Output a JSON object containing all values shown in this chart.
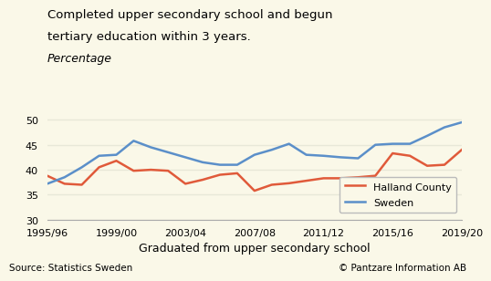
{
  "title_line1": "Completed upper secondary school and begun",
  "title_line2": "tertiary education within 3 years.",
  "title_line3": "Percentage",
  "xlabel": "Graduated from upper secondary school",
  "background_color": "#faf8e8",
  "source_left": "Source: Statistics Sweden",
  "source_right": "© Pantzare Information AB",
  "ylim": [
    30,
    52
  ],
  "yticks": [
    30,
    35,
    40,
    45,
    50
  ],
  "xtick_labels": [
    "1995/96",
    "1999/00",
    "2003/04",
    "2007/08",
    "2011/12",
    "2015/16",
    "2019/20"
  ],
  "xtick_positions": [
    0,
    4,
    8,
    12,
    16,
    20,
    24
  ],
  "halland": [
    38.8,
    37.2,
    37.0,
    40.5,
    41.8,
    39.8,
    40.0,
    39.8,
    37.2,
    38.0,
    39.0,
    39.3,
    35.8,
    37.0,
    37.3,
    37.8,
    38.3,
    38.3,
    38.5,
    38.8,
    43.3,
    42.8,
    40.8,
    41.0,
    44.0
  ],
  "sweden": [
    37.2,
    38.5,
    40.5,
    42.8,
    43.0,
    45.8,
    44.5,
    43.5,
    42.5,
    41.5,
    41.0,
    41.0,
    43.0,
    44.0,
    45.2,
    43.0,
    42.8,
    42.5,
    42.3,
    45.0,
    45.2,
    45.2,
    46.8,
    48.5,
    49.5
  ],
  "halland_color": "#e05a3a",
  "sweden_color": "#5b8fc9",
  "line_width": 1.8,
  "legend_labels": [
    "Halland County",
    "Sweden"
  ],
  "grid_color": "#e8e8d8"
}
